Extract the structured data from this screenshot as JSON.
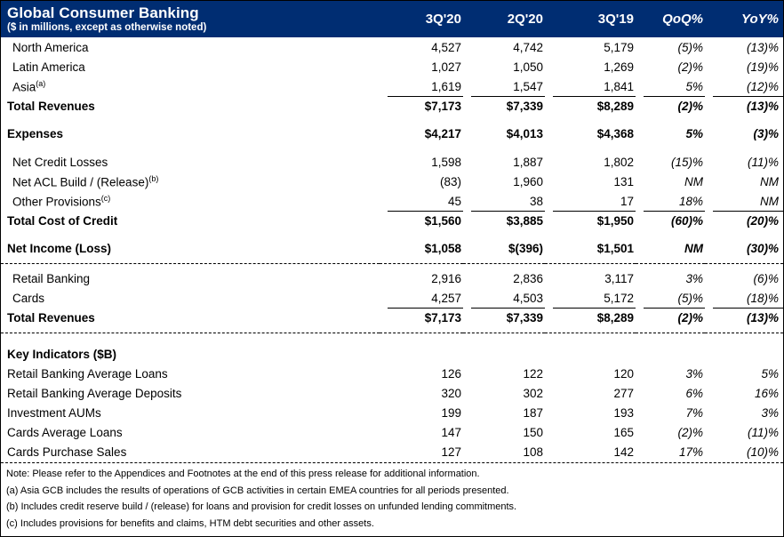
{
  "title": "Global Consumer Banking",
  "subtitle": "($ in millions, except as otherwise noted)",
  "columns": [
    "3Q'20",
    "2Q'20",
    "3Q'19",
    "QoQ%",
    "YoY%"
  ],
  "colors": {
    "header_bg": "#002D72",
    "header_text": "#FFFFFF",
    "body_text": "#000000"
  },
  "rows": [
    {
      "type": "data",
      "label": "North America",
      "indent": true,
      "values": [
        "4,527",
        "4,742",
        "5,179",
        "(5)%",
        "(13)%"
      ]
    },
    {
      "type": "data",
      "label": "Latin America",
      "indent": true,
      "values": [
        "1,027",
        "1,050",
        "1,269",
        "(2)%",
        "(19)%"
      ]
    },
    {
      "type": "data",
      "label": "Asia",
      "sup": "(a)",
      "indent": true,
      "values": [
        "1,619",
        "1,547",
        "1,841",
        "5%",
        "(12)%"
      ]
    },
    {
      "type": "data",
      "label": "Total Revenues",
      "bold": true,
      "rule": true,
      "values": [
        "$7,173",
        "$7,339",
        "$8,289",
        "(2)%",
        "(13)%"
      ]
    },
    {
      "type": "spacer",
      "h": 9
    },
    {
      "type": "data",
      "label": "Expenses",
      "bold": true,
      "values": [
        "$4,217",
        "$4,013",
        "$4,368",
        "5%",
        "(3)%"
      ]
    },
    {
      "type": "spacer",
      "h": 10
    },
    {
      "type": "data",
      "label": "Net Credit Losses",
      "indent": true,
      "values": [
        "1,598",
        "1,887",
        "1,802",
        "(15)%",
        "(11)%"
      ]
    },
    {
      "type": "data",
      "label": "Net ACL Build / (Release)",
      "sup": "(b)",
      "indent": true,
      "values": [
        "(83)",
        "1,960",
        "131",
        "NM",
        "NM"
      ]
    },
    {
      "type": "data",
      "label": "Other Provisions",
      "sup": "(c)",
      "indent": true,
      "values": [
        "45",
        "38",
        "17",
        "18%",
        "NM"
      ]
    },
    {
      "type": "data",
      "label": "Total Cost of Credit",
      "bold": true,
      "rule": true,
      "values": [
        "$1,560",
        "$3,885",
        "$1,950",
        "(60)%",
        "(20)%"
      ]
    },
    {
      "type": "spacer",
      "h": 9
    },
    {
      "type": "data",
      "label": "Net Income (Loss)",
      "bold": true,
      "values": [
        "$1,058",
        "$(396)",
        "$1,501",
        "NM",
        "(30)%"
      ]
    },
    {
      "type": "separator"
    },
    {
      "type": "spacer",
      "h": 5
    },
    {
      "type": "data",
      "label": "Retail Banking",
      "indent": true,
      "values": [
        "2,916",
        "2,836",
        "3,117",
        "3%",
        "(6)%"
      ]
    },
    {
      "type": "data",
      "label": "Cards",
      "indent": true,
      "values": [
        "4,257",
        "4,503",
        "5,172",
        "(5)%",
        "(18)%"
      ]
    },
    {
      "type": "data",
      "label": "Total Revenues",
      "bold": true,
      "rule": true,
      "values": [
        "$7,173",
        "$7,339",
        "$8,289",
        "(2)%",
        "(13)%"
      ]
    },
    {
      "type": "separator"
    },
    {
      "type": "spacer",
      "h": 12
    },
    {
      "type": "data",
      "label": "Key Indicators ($B)",
      "bold": true,
      "values": [
        "",
        "",
        "",
        "",
        ""
      ]
    },
    {
      "type": "data",
      "label": "Retail Banking Average Loans",
      "values": [
        "126",
        "122",
        "120",
        "3%",
        "5%"
      ]
    },
    {
      "type": "data",
      "label": "Retail Banking Average Deposits",
      "values": [
        "320",
        "302",
        "277",
        "6%",
        "16%"
      ]
    },
    {
      "type": "data",
      "label": "Investment AUMs",
      "values": [
        "199",
        "187",
        "193",
        "7%",
        "3%"
      ]
    },
    {
      "type": "data",
      "label": "Cards Average Loans",
      "values": [
        "147",
        "150",
        "165",
        "(2)%",
        "(11)%"
      ]
    },
    {
      "type": "data",
      "label": "Cards Purchase Sales",
      "values": [
        "127",
        "108",
        "142",
        "17%",
        "(10)%"
      ]
    }
  ],
  "footnotes": [
    "Note:  Please refer to the Appendices and Footnotes at the end of this press release for additional information.",
    "(a) Asia GCB includes the results of operations of GCB activities in certain EMEA countries for all periods presented.",
    "(b) Includes credit reserve build / (release) for loans and provision for credit losses on unfunded lending commitments.",
    "(c) Includes provisions for benefits and claims, HTM debt securities and other assets."
  ]
}
